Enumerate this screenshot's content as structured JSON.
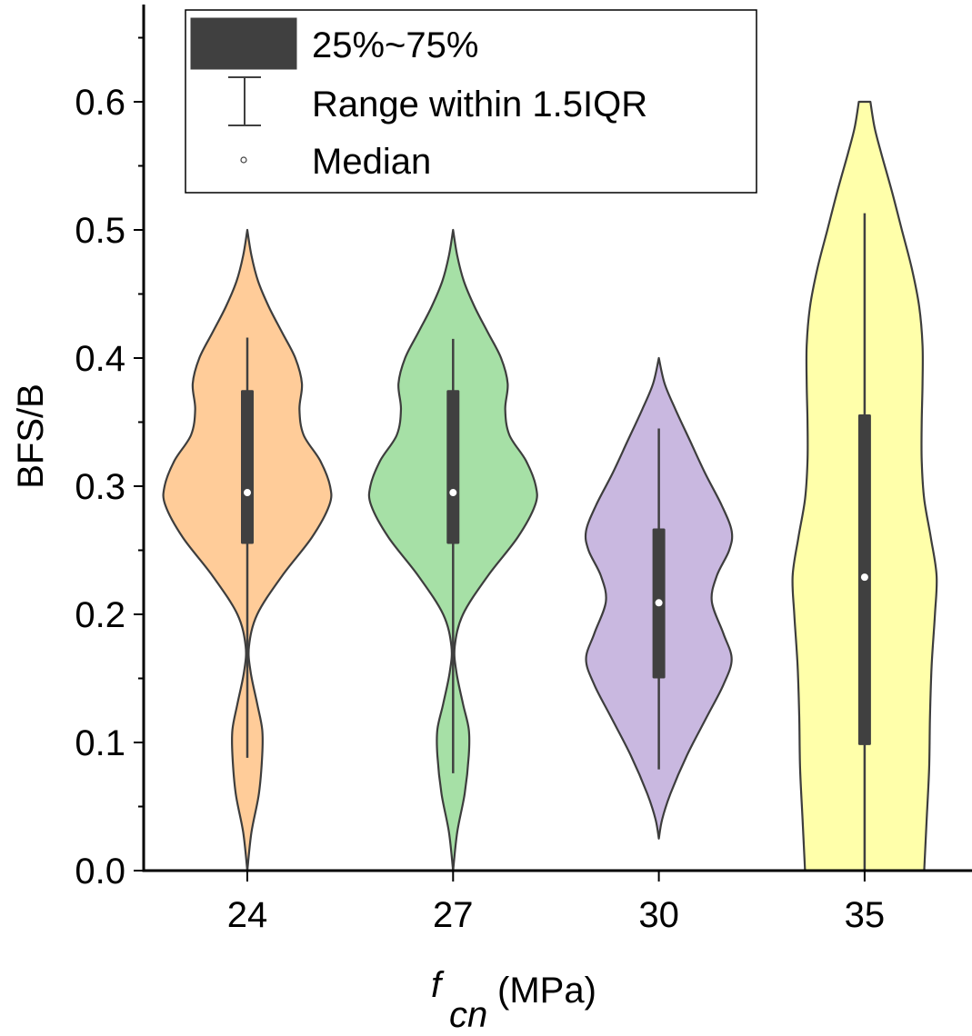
{
  "chart_data": {
    "type": "violin",
    "title": "",
    "xlabel_main": "f",
    "xlabel_sub": "cn",
    "xlabel_unit": "(MPa)",
    "ylabel": "BFS/B",
    "ylim": [
      0.0,
      0.67
    ],
    "yticks": [
      0.0,
      0.1,
      0.2,
      0.3,
      0.4,
      0.5,
      0.6
    ],
    "ytick_labels": [
      "0.0",
      "0.1",
      "0.2",
      "0.3",
      "0.4",
      "0.5",
      "0.6"
    ],
    "y_minor_step": 0.05,
    "categories": [
      "24",
      "27",
      "30",
      "35"
    ],
    "legend": {
      "placement": "top-left",
      "entries": [
        {
          "label": "25%~75%",
          "symbol": "box"
        },
        {
          "label": "Range within 1.5IQR",
          "symbol": "whisker"
        },
        {
          "label": "Median",
          "symbol": "median-dot"
        }
      ]
    },
    "series": [
      {
        "name": "24",
        "color": "#FFCC99",
        "q1": 0.255,
        "median": 0.295,
        "q3": 0.375,
        "whisker_low": 0.088,
        "whisker_high": 0.416,
        "min": 0.0,
        "max": 0.5,
        "density": [
          [
            0.0,
            0.0
          ],
          [
            0.03,
            0.05
          ],
          [
            0.06,
            0.14
          ],
          [
            0.09,
            0.18
          ],
          [
            0.11,
            0.18
          ],
          [
            0.13,
            0.12
          ],
          [
            0.155,
            0.04
          ],
          [
            0.175,
            0.02
          ],
          [
            0.2,
            0.12
          ],
          [
            0.23,
            0.42
          ],
          [
            0.26,
            0.78
          ],
          [
            0.285,
            0.99
          ],
          [
            0.3,
            1.0
          ],
          [
            0.32,
            0.88
          ],
          [
            0.34,
            0.68
          ],
          [
            0.36,
            0.63
          ],
          [
            0.38,
            0.66
          ],
          [
            0.4,
            0.58
          ],
          [
            0.42,
            0.42
          ],
          [
            0.44,
            0.26
          ],
          [
            0.46,
            0.13
          ],
          [
            0.48,
            0.05
          ],
          [
            0.5,
            0.0
          ]
        ]
      },
      {
        "name": "27",
        "color": "#A6E0A6",
        "q1": 0.255,
        "median": 0.295,
        "q3": 0.375,
        "whisker_low": 0.076,
        "whisker_high": 0.415,
        "min": 0.0,
        "max": 0.5,
        "density": [
          [
            0.0,
            0.0
          ],
          [
            0.03,
            0.05
          ],
          [
            0.06,
            0.14
          ],
          [
            0.09,
            0.19
          ],
          [
            0.11,
            0.19
          ],
          [
            0.13,
            0.12
          ],
          [
            0.155,
            0.04
          ],
          [
            0.175,
            0.02
          ],
          [
            0.2,
            0.12
          ],
          [
            0.23,
            0.42
          ],
          [
            0.26,
            0.78
          ],
          [
            0.285,
            0.99
          ],
          [
            0.3,
            1.0
          ],
          [
            0.32,
            0.88
          ],
          [
            0.34,
            0.68
          ],
          [
            0.36,
            0.63
          ],
          [
            0.38,
            0.66
          ],
          [
            0.4,
            0.58
          ],
          [
            0.42,
            0.42
          ],
          [
            0.44,
            0.26
          ],
          [
            0.46,
            0.13
          ],
          [
            0.48,
            0.05
          ],
          [
            0.5,
            0.0
          ]
        ]
      },
      {
        "name": "30",
        "color": "#C9B8E0",
        "q1": 0.15,
        "median": 0.209,
        "q3": 0.267,
        "whisker_low": 0.079,
        "whisker_high": 0.345,
        "min": 0.025,
        "max": 0.4,
        "density": [
          [
            0.025,
            0.0
          ],
          [
            0.04,
            0.04
          ],
          [
            0.06,
            0.14
          ],
          [
            0.09,
            0.34
          ],
          [
            0.12,
            0.58
          ],
          [
            0.145,
            0.78
          ],
          [
            0.165,
            0.88
          ],
          [
            0.185,
            0.78
          ],
          [
            0.21,
            0.64
          ],
          [
            0.23,
            0.7
          ],
          [
            0.25,
            0.85
          ],
          [
            0.265,
            0.88
          ],
          [
            0.285,
            0.76
          ],
          [
            0.31,
            0.56
          ],
          [
            0.335,
            0.38
          ],
          [
            0.36,
            0.2
          ],
          [
            0.38,
            0.07
          ],
          [
            0.4,
            0.0
          ]
        ]
      },
      {
        "name": "35",
        "color": "#FFFFAA",
        "q1": 0.098,
        "median": 0.229,
        "q3": 0.356,
        "whisker_low": 0.0,
        "whisker_high": 0.513,
        "min": 0.0,
        "max": 0.6,
        "density": [
          [
            0.0,
            0.72
          ],
          [
            0.04,
            0.75
          ],
          [
            0.08,
            0.78
          ],
          [
            0.12,
            0.79
          ],
          [
            0.16,
            0.81
          ],
          [
            0.2,
            0.85
          ],
          [
            0.23,
            0.87
          ],
          [
            0.26,
            0.8
          ],
          [
            0.29,
            0.72
          ],
          [
            0.32,
            0.69
          ],
          [
            0.35,
            0.69
          ],
          [
            0.38,
            0.7
          ],
          [
            0.41,
            0.7
          ],
          [
            0.44,
            0.66
          ],
          [
            0.47,
            0.57
          ],
          [
            0.5,
            0.45
          ],
          [
            0.53,
            0.33
          ],
          [
            0.56,
            0.2
          ],
          [
            0.58,
            0.12
          ],
          [
            0.6,
            0.07
          ]
        ]
      }
    ]
  }
}
